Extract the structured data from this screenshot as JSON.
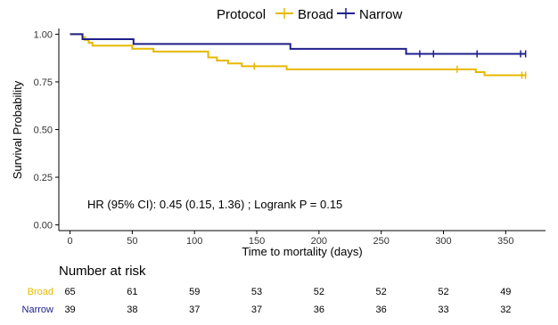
{
  "legend": {
    "title": "Protocol",
    "position": "top",
    "items": [
      {
        "label": "Broad",
        "color": "#E7B800"
      },
      {
        "label": "Narrow",
        "color": "#1F1F8C"
      }
    ]
  },
  "chart_data": {
    "type": "line",
    "subtype": "kaplan-meier step",
    "xlabel": "Time to mortality (days)",
    "ylabel": "Survival Probability",
    "xlim": [
      -9,
      382
    ],
    "ylim": [
      -0.03,
      1.03
    ],
    "x_ticks": [
      0,
      50,
      100,
      150,
      200,
      250,
      300,
      350
    ],
    "y_ticks": [
      0.0,
      0.25,
      0.5,
      0.75,
      1.0
    ],
    "y_tick_labels": [
      "0.00",
      "0.25",
      "0.50",
      "0.75",
      "1.00"
    ],
    "grid": false,
    "annotation": "HR (95% CI): 0.45 (0.15, 1.36) ; Logrank P = 0.15",
    "series": [
      {
        "name": "Broad",
        "color": "#E7B800",
        "steps": [
          [
            0,
            1.0
          ],
          [
            10,
            0.985
          ],
          [
            12,
            0.97
          ],
          [
            15,
            0.955
          ],
          [
            18,
            0.94
          ],
          [
            50,
            0.924
          ],
          [
            67,
            0.909
          ],
          [
            111,
            0.878
          ],
          [
            118,
            0.862
          ],
          [
            127,
            0.847
          ],
          [
            138,
            0.832
          ],
          [
            174,
            0.816
          ],
          [
            326,
            0.801
          ],
          [
            333,
            0.785
          ],
          [
            366,
            0.785
          ]
        ],
        "censored": [
          148,
          311,
          363,
          366
        ]
      },
      {
        "name": "Narrow",
        "color": "#1F1F8C",
        "steps": [
          [
            0,
            1.0
          ],
          [
            10,
            0.974
          ],
          [
            51,
            0.949
          ],
          [
            177,
            0.923
          ],
          [
            270,
            0.897
          ],
          [
            366,
            0.897
          ]
        ],
        "censored": [
          281,
          292,
          327,
          362,
          366
        ]
      }
    ]
  },
  "risk_table": {
    "title": "Number at risk",
    "times": [
      0,
      50,
      100,
      150,
      200,
      250,
      300,
      350
    ],
    "rows": [
      {
        "label": "Broad",
        "color": "#E7B800",
        "values": [
          "65",
          "61",
          "59",
          "53",
          "52",
          "52",
          "52",
          "49"
        ]
      },
      {
        "label": "Narrow",
        "color": "#1F1F8C",
        "values": [
          "39",
          "38",
          "37",
          "37",
          "36",
          "36",
          "33",
          "32"
        ]
      }
    ]
  }
}
